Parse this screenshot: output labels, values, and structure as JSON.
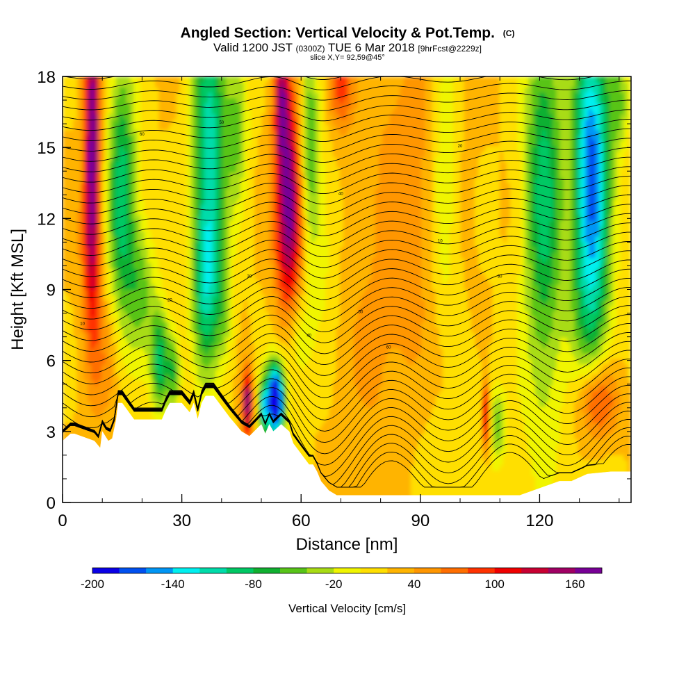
{
  "header": {
    "title": "Angled Section: Vertical Velocity & Pot.Temp.",
    "title_tag": "(C)",
    "valid_prefix": "Valid 1200 JST",
    "valid_utc": "(0300Z)",
    "valid_date": "TUE 6 Mar 2018",
    "forecast": "[9hrFcst@2229z]",
    "slice": "slice X,Y= 92,59@45°"
  },
  "chart_data": {
    "type": "heatmap",
    "xlabel": "Distance [nm]",
    "ylabel": "Height [Kft MSL]",
    "xlim": [
      0,
      143
    ],
    "ylim": [
      0,
      18
    ],
    "x_ticks": [
      0,
      30,
      60,
      90,
      120
    ],
    "y_ticks": [
      0,
      3,
      6,
      9,
      12,
      15,
      18
    ],
    "legend_position": "bottom",
    "colorbar": {
      "label": "Vertical Velocity [cm/s]",
      "levels": [
        -200,
        -180,
        -160,
        -140,
        -120,
        -100,
        -80,
        -60,
        -40,
        -20,
        0,
        20,
        40,
        60,
        80,
        100,
        120,
        140,
        160,
        180
      ],
      "tick_labels": [
        "-200",
        "-140",
        "-80",
        "-20",
        "40",
        "100",
        "160"
      ],
      "colors": [
        "#0a00e6",
        "#0050f0",
        "#0096f5",
        "#00f0f0",
        "#00dcaa",
        "#00c864",
        "#10b030",
        "#58c418",
        "#a8dc14",
        "#f0f500",
        "#ffdf00",
        "#ffb400",
        "#ff9600",
        "#ff6e00",
        "#ff3200",
        "#f00000",
        "#c80032",
        "#a00064",
        "#780096"
      ]
    },
    "updraft_cores": [
      {
        "x": 7.5,
        "z_range": [
          11,
          18
        ],
        "w": 120
      },
      {
        "x": 46.5,
        "z_range": [
          3,
          5
        ],
        "w": 110
      },
      {
        "x": 57,
        "z_range": [
          9.5,
          16
        ],
        "w": 115
      },
      {
        "x": 70,
        "z_range": [
          16,
          18
        ],
        "w": 110
      },
      {
        "x": 107,
        "z_range": [
          2.8,
          4.5
        ],
        "w": 100
      },
      {
        "x": 134,
        "z_range": [
          3.5,
          5
        ],
        "w": 90
      }
    ],
    "downdraft_cores": [
      {
        "x": 53.5,
        "z_range": [
          3.3,
          5.5
        ],
        "w": -195
      },
      {
        "x": 50.5,
        "z_range": [
          3.3,
          5
        ],
        "w": -150
      },
      {
        "x": 133,
        "z_range": [
          11,
          18
        ],
        "w": -160
      },
      {
        "x": 15,
        "z_range": [
          10,
          17
        ],
        "w": -90
      },
      {
        "x": 37,
        "z_range": [
          13,
          18
        ],
        "w": -130
      }
    ],
    "terrain": {
      "x": [
        0,
        2,
        3,
        8,
        9.5,
        10,
        11.5,
        12.5,
        13.5,
        14,
        15,
        18,
        20,
        25,
        26,
        27,
        30,
        32,
        33,
        34,
        35,
        36,
        38,
        42,
        45,
        47,
        50,
        51,
        52,
        53,
        55,
        57,
        58,
        62,
        63,
        64,
        65,
        67,
        69,
        71,
        75,
        85,
        95,
        100,
        105,
        115,
        120,
        125,
        128,
        132,
        138,
        143
      ],
      "height": [
        2.6,
        2.9,
        2.9,
        2.6,
        2.3,
        3.0,
        2.6,
        2.7,
        3.5,
        4.2,
        4.2,
        3.5,
        3.5,
        3.5,
        3.9,
        4.2,
        4.2,
        3.8,
        4.2,
        3.5,
        4.2,
        4.5,
        4.5,
        3.6,
        3.0,
        2.8,
        3.3,
        2.9,
        3.3,
        3.0,
        3.3,
        3.0,
        2.5,
        1.6,
        1.6,
        1.3,
        0.9,
        0.5,
        0.3,
        0.3,
        0.3,
        0.3,
        0.3,
        0.3,
        0.3,
        0.3,
        0.6,
        0.9,
        0.9,
        1.2,
        1.3,
        1.3
      ]
    },
    "contours": {
      "variable": "potential temperature (C)",
      "interval": 2,
      "labels": [
        "10",
        "20",
        "30",
        "40",
        "50",
        "60"
      ]
    }
  }
}
